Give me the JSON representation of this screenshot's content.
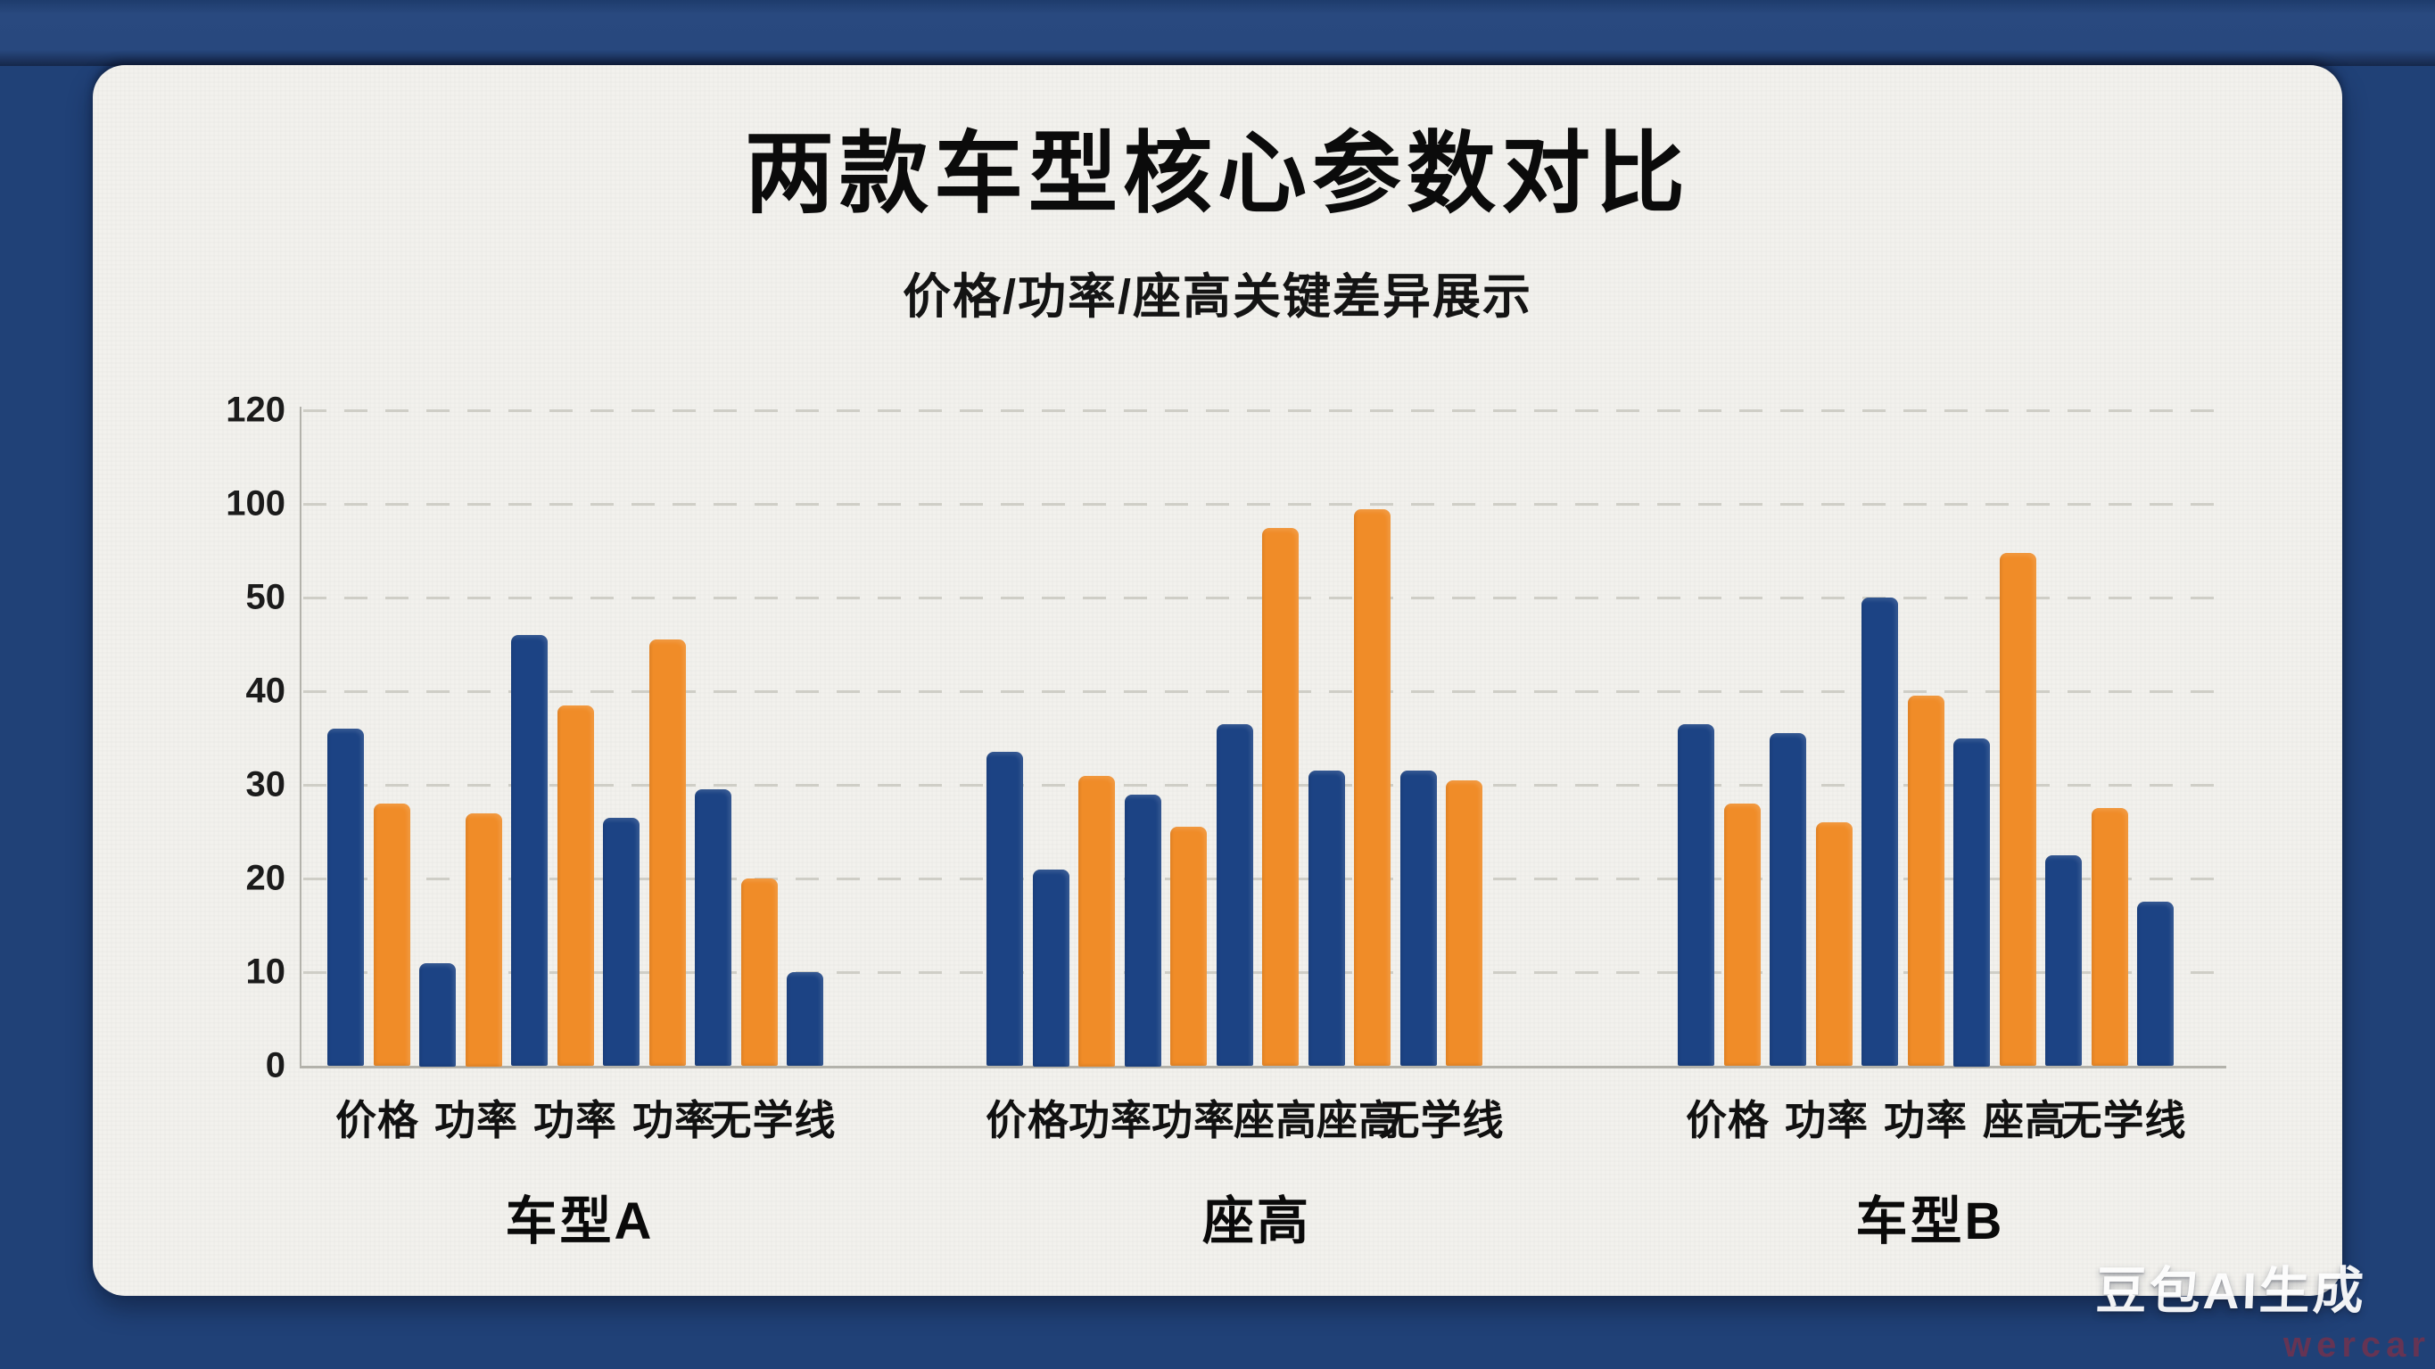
{
  "header": {
    "title": "两款车型核心参数对比",
    "subtitle": "价格/功率/座高关键差异展示"
  },
  "watermark": {
    "brand": "豆包AI生成",
    "sub": "wercar"
  },
  "colors": {
    "frame_navy": "#204177",
    "card_background": "#f2f1ed",
    "bar_blue": "#1c4384",
    "bar_orange": "#f08c28",
    "gridline": "#c9c8c0",
    "axis": "#b3b2ab",
    "text": "#0b0b0b"
  },
  "chart_data": {
    "type": "bar",
    "title": "两款车型核心参数对比",
    "subtitle": "价格/功率/座高关键差异展示",
    "xlabel": "",
    "ylabel": "",
    "legend": "none",
    "grid": "horizontal dashed",
    "y_ticks": [
      0,
      10,
      20,
      30,
      40,
      50,
      100,
      120
    ],
    "y_axis_note": "non-linear axis: tick labels 0-120 drawn at even spacing",
    "series_colors": {
      "blue": "#1c4384",
      "orange": "#f08c28"
    },
    "groups": [
      {
        "name": "车型A",
        "x_labels": [
          "价格",
          "功率",
          "功率",
          "功率",
          "无学线"
        ],
        "bars": [
          {
            "value": 36,
            "color": "blue"
          },
          {
            "value": 28,
            "color": "orange"
          },
          {
            "value": 11,
            "color": "blue"
          },
          {
            "value": 27,
            "color": "orange"
          },
          {
            "value": 46,
            "color": "blue"
          },
          {
            "value": 38.5,
            "color": "orange"
          },
          {
            "value": 26.5,
            "color": "blue"
          },
          {
            "value": 45.5,
            "color": "orange"
          },
          {
            "value": 29.5,
            "color": "blue"
          },
          {
            "value": 20,
            "color": "orange"
          },
          {
            "value": 10,
            "color": "blue"
          }
        ]
      },
      {
        "name": "座高",
        "x_labels": [
          "价格",
          "功率",
          "功率",
          "座高",
          "座高",
          "无学线"
        ],
        "bars": [
          {
            "value": 33.5,
            "color": "blue"
          },
          {
            "value": 21,
            "color": "blue"
          },
          {
            "value": 31,
            "color": "orange"
          },
          {
            "value": 29,
            "color": "blue"
          },
          {
            "value": 25.5,
            "color": "orange"
          },
          {
            "value": 36.5,
            "color": "blue"
          },
          {
            "value": 87,
            "color": "orange"
          },
          {
            "value": 31.5,
            "color": "blue"
          },
          {
            "value": 97,
            "color": "orange"
          },
          {
            "value": 31.5,
            "color": "blue"
          },
          {
            "value": 30.5,
            "color": "orange"
          }
        ]
      },
      {
        "name": "车型B",
        "x_labels": [
          "价格",
          "功率",
          "功率",
          "座高",
          "无学线"
        ],
        "bars": [
          {
            "value": 36.5,
            "color": "blue"
          },
          {
            "value": 28,
            "color": "orange"
          },
          {
            "value": 35.5,
            "color": "blue"
          },
          {
            "value": 26,
            "color": "orange"
          },
          {
            "value": 50,
            "color": "blue"
          },
          {
            "value": 39.5,
            "color": "orange"
          },
          {
            "value": 35,
            "color": "blue"
          },
          {
            "value": 74,
            "color": "orange"
          },
          {
            "value": 22.5,
            "color": "blue"
          },
          {
            "value": 27.5,
            "color": "orange"
          },
          {
            "value": 17.5,
            "color": "blue"
          }
        ]
      }
    ]
  }
}
